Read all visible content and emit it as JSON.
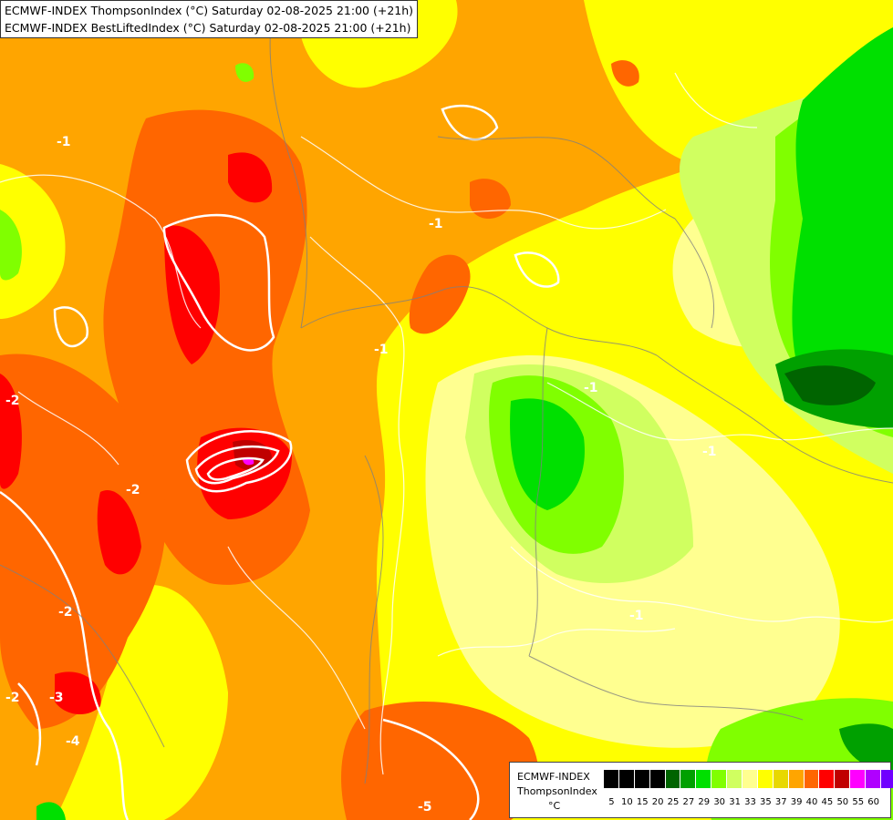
{
  "header": {
    "line1": "ECMWF-INDEX ThompsonIndex (°C) Saturday 02-08-2025 21:00 (+21h)",
    "line2": "ECMWF-INDEX BestLiftedIndex (°C) Saturday 02-08-2025 21:00 (+21h)"
  },
  "legend": {
    "model": "ECMWF-INDEX",
    "parameter": "ThompsonIndex",
    "unit": "°C",
    "colors": [
      "#000000",
      "#000000",
      "#000000",
      "#000000",
      "#006400",
      "#00a000",
      "#00e000",
      "#80ff00",
      "#d0ff60",
      "#ffff90",
      "#ffff00",
      "#e8d800",
      "#ffa500",
      "#ff6600",
      "#ff0000",
      "#c00000",
      "#ff00ff",
      "#b000ff",
      "#7000ff",
      "#0000ff"
    ],
    "ticks": [
      "5",
      "10",
      "15",
      "20",
      "25",
      "27",
      "29",
      "30",
      "31",
      "33",
      "35",
      "37",
      "39",
      "40",
      "45",
      "50",
      "55",
      "60"
    ]
  },
  "contour_labels": [
    "-2",
    "-2",
    "-2",
    "-3",
    "-4",
    "-2",
    "-5",
    "-1",
    "-1",
    "-1",
    "-1",
    "-1",
    "-1"
  ]
}
